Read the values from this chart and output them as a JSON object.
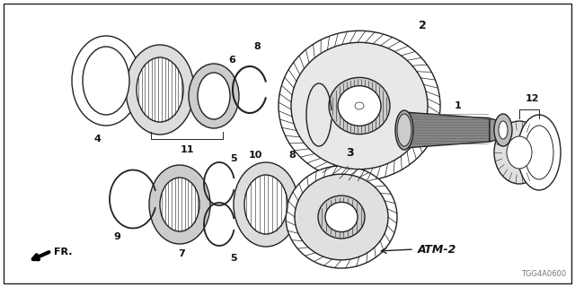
{
  "background_color": "#ffffff",
  "border_color": "#000000",
  "part_number": "TGG4A0600",
  "atm_label": "ATM-2",
  "fr_label": "FR.",
  "line_color": "#222222",
  "text_color": "#111111",
  "font_size_labels": 8,
  "font_size_part_number": 6,
  "font_size_atm": 8,
  "figw": 6.4,
  "figh": 3.2
}
